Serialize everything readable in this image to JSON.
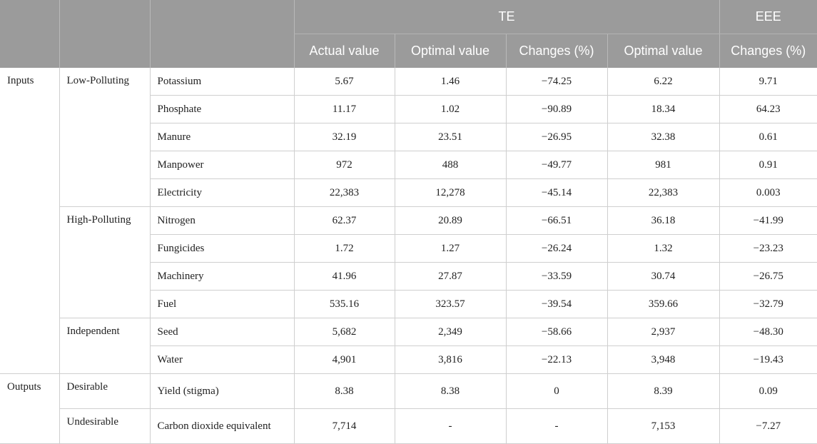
{
  "header": {
    "groups": {
      "te": "TE",
      "eee": "EEE"
    },
    "columns": {
      "actual": "Actual value",
      "te_optimal": "Optimal value",
      "te_changes": "Changes (%)",
      "eee_optimal": "Optimal value",
      "eee_changes": "Changes (%)"
    }
  },
  "groups": {
    "inputs": "Inputs",
    "outputs": "Outputs"
  },
  "subgroups": {
    "low": "Low-Polluting",
    "high": "High-Polluting",
    "independent": "Independent",
    "desirable": "Desirable",
    "undesirable": "Undesirable"
  },
  "rows": [
    {
      "label": "Potassium",
      "actual": "5.67",
      "te_optimal": "1.46",
      "te_changes": "−74.25",
      "eee_optimal": "6.22",
      "eee_changes": "9.71"
    },
    {
      "label": "Phosphate",
      "actual": "11.17",
      "te_optimal": "1.02",
      "te_changes": "−90.89",
      "eee_optimal": "18.34",
      "eee_changes": "64.23"
    },
    {
      "label": "Manure",
      "actual": "32.19",
      "te_optimal": "23.51",
      "te_changes": "−26.95",
      "eee_optimal": "32.38",
      "eee_changes": "0.61"
    },
    {
      "label": "Manpower",
      "actual": "972",
      "te_optimal": "488",
      "te_changes": "−49.77",
      "eee_optimal": "981",
      "eee_changes": "0.91"
    },
    {
      "label": "Electricity",
      "actual": "22,383",
      "te_optimal": "12,278",
      "te_changes": "−45.14",
      "eee_optimal": "22,383",
      "eee_changes": "0.003"
    },
    {
      "label": "Nitrogen",
      "actual": "62.37",
      "te_optimal": "20.89",
      "te_changes": "−66.51",
      "eee_optimal": "36.18",
      "eee_changes": "−41.99"
    },
    {
      "label": "Fungicides",
      "actual": "1.72",
      "te_optimal": "1.27",
      "te_changes": "−26.24",
      "eee_optimal": "1.32",
      "eee_changes": "−23.23"
    },
    {
      "label": "Machinery",
      "actual": "41.96",
      "te_optimal": "27.87",
      "te_changes": "−33.59",
      "eee_optimal": "30.74",
      "eee_changes": "−26.75"
    },
    {
      "label": "Fuel",
      "actual": "535.16",
      "te_optimal": "323.57",
      "te_changes": "−39.54",
      "eee_optimal": "359.66",
      "eee_changes": "−32.79"
    },
    {
      "label": "Seed",
      "actual": "5,682",
      "te_optimal": "2,349",
      "te_changes": "−58.66",
      "eee_optimal": "2,937",
      "eee_changes": "−48.30"
    },
    {
      "label": "Water",
      "actual": "4,901",
      "te_optimal": "3,816",
      "te_changes": "−22.13",
      "eee_optimal": "3,948",
      "eee_changes": "−19.43"
    },
    {
      "label": "Yield (stigma)",
      "actual": "8.38",
      "te_optimal": "8.38",
      "te_changes": "0",
      "eee_optimal": "8.39",
      "eee_changes": "0.09"
    },
    {
      "label": "Carbon dioxide equivalent",
      "actual": "7,714",
      "te_optimal": "-",
      "te_changes": "-",
      "eee_optimal": "7,153",
      "eee_changes": "−7.27"
    }
  ]
}
